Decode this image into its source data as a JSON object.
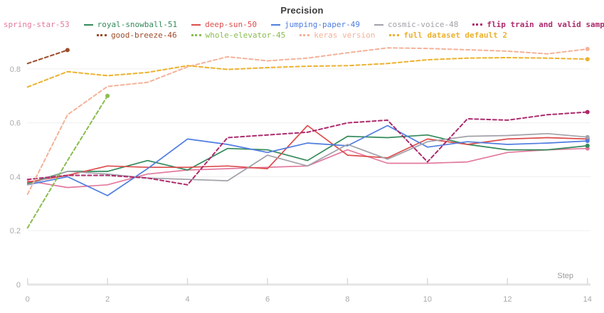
{
  "chart_data": {
    "type": "line",
    "title": "Precision",
    "xlabel": "Step",
    "xlim": [
      0,
      14
    ],
    "ylim": [
      0,
      0.9
    ],
    "x_ticks": [
      0,
      2,
      4,
      6,
      8,
      10,
      12,
      14
    ],
    "y_ticks": [
      0,
      0.2,
      0.4,
      0.6,
      0.8
    ],
    "y_tick_labels": [
      "0",
      "0.2",
      "0.4",
      "0.6",
      "0.8"
    ],
    "grid": true,
    "legend_position": "top",
    "legend_row_split": 6,
    "axis_colors": {
      "grid": "#efefef",
      "axis_line": "#e4e4e4",
      "tick": "#d9d9d9",
      "tick_label": "#a9a9a9",
      "axis_label": "#9b9b9b",
      "title": "#3b3b3b"
    },
    "series": [
      {
        "name": "spring-star-53",
        "color": "#e2799e",
        "style": "solid",
        "bold": false,
        "x": [
          0,
          1,
          2,
          3,
          4,
          5,
          6,
          7,
          8,
          9,
          10,
          11,
          12,
          13,
          14
        ],
        "values": [
          0.385,
          0.36,
          0.37,
          0.41,
          0.425,
          0.43,
          0.435,
          0.44,
          0.5,
          0.45,
          0.45,
          0.455,
          0.49,
          0.5,
          0.505
        ]
      },
      {
        "name": "royal-snowball-51",
        "color": "#338a5a",
        "style": "solid",
        "bold": false,
        "x": [
          0,
          1,
          2,
          3,
          4,
          5,
          6,
          7,
          8,
          9,
          10,
          11,
          12,
          13,
          14
        ],
        "values": [
          0.375,
          0.42,
          0.42,
          0.46,
          0.425,
          0.505,
          0.5,
          0.46,
          0.55,
          0.545,
          0.555,
          0.52,
          0.5,
          0.5,
          0.515
        ]
      },
      {
        "name": "deep-sun-50",
        "color": "#dc4c4c",
        "style": "solid",
        "bold": false,
        "x": [
          0,
          1,
          2,
          3,
          4,
          5,
          6,
          7,
          8,
          9,
          10,
          11,
          12,
          13,
          14
        ],
        "values": [
          0.38,
          0.405,
          0.44,
          0.435,
          0.435,
          0.44,
          0.43,
          0.59,
          0.48,
          0.47,
          0.54,
          0.52,
          0.54,
          0.545,
          0.54
        ]
      },
      {
        "name": "jumping-paper-49",
        "color": "#4f7de0",
        "style": "solid",
        "bold": false,
        "x": [
          0,
          1,
          2,
          3,
          4,
          5,
          6,
          7,
          8,
          9,
          10,
          11,
          12,
          13,
          14
        ],
        "values": [
          0.37,
          0.4,
          0.33,
          0.43,
          0.54,
          0.52,
          0.49,
          0.525,
          0.515,
          0.59,
          0.51,
          0.53,
          0.52,
          0.525,
          0.533
        ]
      },
      {
        "name": "cosmic-voice-48",
        "color": "#a1a1a9",
        "style": "solid",
        "bold": false,
        "x": [
          0,
          1,
          2,
          3,
          4,
          5,
          6,
          7,
          8,
          9,
          10,
          11,
          12,
          13,
          14
        ],
        "values": [
          0.37,
          0.42,
          0.41,
          0.395,
          0.39,
          0.385,
          0.48,
          0.44,
          0.52,
          0.465,
          0.53,
          0.55,
          0.553,
          0.56,
          0.547
        ]
      },
      {
        "name": "flip train and valid sample",
        "color": "#ad2a6c",
        "style": "dashed",
        "bold": true,
        "x": [
          0,
          1,
          2,
          3,
          4,
          5,
          6,
          7,
          8,
          9,
          10,
          11,
          12,
          13,
          14
        ],
        "values": [
          0.39,
          0.405,
          0.405,
          0.395,
          0.37,
          0.545,
          0.555,
          0.565,
          0.6,
          0.61,
          0.455,
          0.615,
          0.61,
          0.63,
          0.64
        ]
      },
      {
        "name": "good-breeze-46",
        "color": "#9d4c2b",
        "style": "dashed",
        "bold": false,
        "x": [
          0,
          1
        ],
        "values": [
          0.82,
          0.87
        ]
      },
      {
        "name": "whole-elevator-45",
        "color": "#89bd4e",
        "style": "dashed",
        "bold": false,
        "x": [
          0,
          1,
          2
        ],
        "values": [
          0.21,
          0.46,
          0.7
        ]
      },
      {
        "name": "keras version",
        "color": "#f4b299",
        "style": "dashed",
        "bold": false,
        "x": [
          0,
          1,
          2,
          3,
          4,
          5,
          6,
          7,
          8,
          9,
          10,
          11,
          12,
          13,
          14
        ],
        "values": [
          0.335,
          0.63,
          0.735,
          0.75,
          0.808,
          0.845,
          0.83,
          0.84,
          0.86,
          0.878,
          0.876,
          0.871,
          0.866,
          0.856,
          0.874
        ]
      },
      {
        "name": "full dataset default 2",
        "color": "#ecb22e",
        "style": "dashed",
        "bold": true,
        "x": [
          0,
          1,
          2,
          3,
          4,
          5,
          6,
          7,
          8,
          9,
          10,
          11,
          12,
          13,
          14
        ],
        "values": [
          0.733,
          0.79,
          0.775,
          0.787,
          0.812,
          0.798,
          0.805,
          0.81,
          0.812,
          0.82,
          0.834,
          0.84,
          0.842,
          0.84,
          0.836
        ]
      }
    ]
  }
}
